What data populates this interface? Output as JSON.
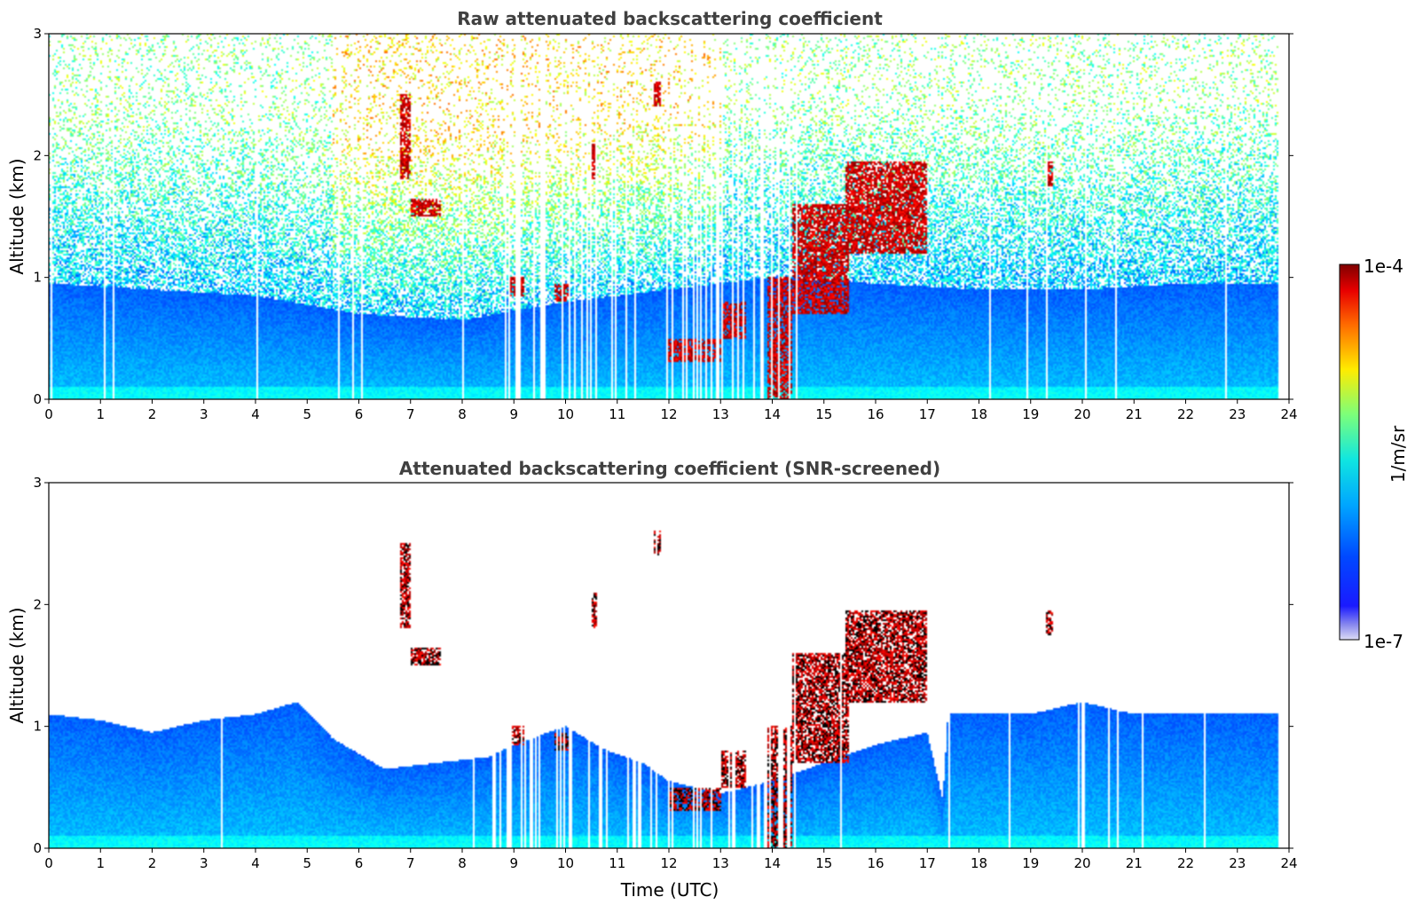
{
  "chart_data": [
    {
      "type": "heatmap",
      "title": "Raw attenuated backscattering coefficient",
      "xlabel": "",
      "ylabel": "Altitude (km)",
      "xlim": [
        0,
        24
      ],
      "ylim": [
        0,
        3
      ],
      "x_ticks": [
        "0",
        "1",
        "2",
        "3",
        "4",
        "5",
        "6",
        "7",
        "8",
        "9",
        "10",
        "11",
        "12",
        "13",
        "14",
        "15",
        "16",
        "17",
        "18",
        "19",
        "20",
        "21",
        "22",
        "23",
        "24"
      ],
      "y_ticks": [
        "0",
        "1",
        "2",
        "3"
      ],
      "x_tick_values": [
        0,
        1,
        2,
        3,
        4,
        5,
        6,
        7,
        8,
        9,
        10,
        11,
        12,
        13,
        14,
        15,
        16,
        17,
        18,
        19,
        20,
        21,
        22,
        23,
        24
      ],
      "y_tick_values": [
        0,
        1,
        2,
        3
      ],
      "data_end_time": 23.8,
      "noise_color": "#5ad4e8",
      "upper_noise_color": "#d9e85a",
      "boundary_layer_top": [
        [
          0,
          0.95
        ],
        [
          2,
          0.9
        ],
        [
          4,
          0.85
        ],
        [
          6,
          0.7
        ],
        [
          8,
          0.65
        ],
        [
          10,
          0.8
        ],
        [
          12,
          0.9
        ],
        [
          14,
          1.0
        ],
        [
          16,
          0.95
        ],
        [
          18,
          0.9
        ],
        [
          20,
          0.9
        ],
        [
          22,
          0.95
        ],
        [
          23.8,
          0.95
        ]
      ],
      "cloud_features": [
        {
          "x0": 6.8,
          "x1": 7.0,
          "y0": 1.8,
          "y1": 2.5
        },
        {
          "x0": 7.0,
          "x1": 7.6,
          "y0": 1.5,
          "y1": 1.65
        },
        {
          "x0": 8.9,
          "x1": 9.2,
          "y0": 0.85,
          "y1": 1.0
        },
        {
          "x0": 9.8,
          "x1": 10.1,
          "y0": 0.8,
          "y1": 0.95
        },
        {
          "x0": 10.5,
          "x1": 10.6,
          "y0": 1.8,
          "y1": 2.1
        },
        {
          "x0": 11.7,
          "x1": 11.85,
          "y0": 2.4,
          "y1": 2.6
        },
        {
          "x0": 12.0,
          "x1": 13.0,
          "y0": 0.3,
          "y1": 0.5
        },
        {
          "x0": 13.0,
          "x1": 13.5,
          "y0": 0.5,
          "y1": 0.8
        },
        {
          "x0": 13.9,
          "x1": 14.4,
          "y0": 0.0,
          "y1": 1.0
        },
        {
          "x0": 14.4,
          "x1": 15.5,
          "y0": 0.7,
          "y1": 1.6
        },
        {
          "x0": 15.4,
          "x1": 17.0,
          "y0": 1.2,
          "y1": 1.95
        },
        {
          "x0": 19.3,
          "x1": 19.45,
          "y0": 1.75,
          "y1": 1.95
        }
      ],
      "snr_screened": false
    },
    {
      "type": "heatmap",
      "title": "Attenuated backscattering coefficient (SNR-screened)",
      "xlabel": "Time (UTC)",
      "ylabel": "Altitude (km)",
      "xlim": [
        0,
        24
      ],
      "ylim": [
        0,
        3
      ],
      "x_ticks": [
        "0",
        "1",
        "2",
        "3",
        "4",
        "5",
        "6",
        "7",
        "8",
        "9",
        "10",
        "11",
        "12",
        "13",
        "14",
        "15",
        "16",
        "17",
        "18",
        "19",
        "20",
        "21",
        "22",
        "23",
        "24"
      ],
      "y_ticks": [
        "0",
        "1",
        "2",
        "3"
      ],
      "x_tick_values": [
        0,
        1,
        2,
        3,
        4,
        5,
        6,
        7,
        8,
        9,
        10,
        11,
        12,
        13,
        14,
        15,
        16,
        17,
        18,
        19,
        20,
        21,
        22,
        23,
        24
      ],
      "y_tick_values": [
        0,
        1,
        2,
        3
      ],
      "data_end_time": 23.8,
      "boundary_layer_top": [
        [
          0,
          1.1
        ],
        [
          1,
          1.05
        ],
        [
          2,
          0.95
        ],
        [
          3,
          1.05
        ],
        [
          4,
          1.1
        ],
        [
          4.8,
          1.2
        ],
        [
          5.5,
          0.9
        ],
        [
          6.5,
          0.65
        ],
        [
          7.5,
          0.7
        ],
        [
          8.5,
          0.75
        ],
        [
          9,
          0.85
        ],
        [
          10,
          1.0
        ],
        [
          10.8,
          0.8
        ],
        [
          11.5,
          0.7
        ],
        [
          12,
          0.55
        ],
        [
          13,
          0.45
        ],
        [
          14,
          0.55
        ],
        [
          15,
          0.7
        ],
        [
          16,
          0.85
        ],
        [
          17,
          0.95
        ],
        [
          17.3,
          0.4
        ],
        [
          17.4,
          1.1
        ],
        [
          18,
          1.1
        ],
        [
          19,
          1.1
        ],
        [
          20,
          1.2
        ],
        [
          21,
          1.1
        ],
        [
          22,
          1.1
        ],
        [
          23,
          1.1
        ],
        [
          23.8,
          1.1
        ]
      ],
      "cloud_features": [
        {
          "x0": 6.8,
          "x1": 7.0,
          "y0": 1.8,
          "y1": 2.5
        },
        {
          "x0": 7.0,
          "x1": 7.6,
          "y0": 1.5,
          "y1": 1.65
        },
        {
          "x0": 8.9,
          "x1": 9.2,
          "y0": 0.85,
          "y1": 1.0
        },
        {
          "x0": 9.8,
          "x1": 10.1,
          "y0": 0.8,
          "y1": 0.95
        },
        {
          "x0": 10.5,
          "x1": 10.6,
          "y0": 1.8,
          "y1": 2.1
        },
        {
          "x0": 11.7,
          "x1": 11.85,
          "y0": 2.4,
          "y1": 2.6
        },
        {
          "x0": 12.0,
          "x1": 13.0,
          "y0": 0.3,
          "y1": 0.5
        },
        {
          "x0": 13.0,
          "x1": 13.5,
          "y0": 0.5,
          "y1": 0.8
        },
        {
          "x0": 13.9,
          "x1": 14.4,
          "y0": 0.0,
          "y1": 1.0
        },
        {
          "x0": 14.4,
          "x1": 15.5,
          "y0": 0.7,
          "y1": 1.6
        },
        {
          "x0": 15.4,
          "x1": 17.0,
          "y0": 1.2,
          "y1": 1.95
        },
        {
          "x0": 19.3,
          "x1": 19.45,
          "y0": 1.75,
          "y1": 1.95
        }
      ],
      "snr_screened": true
    }
  ],
  "colorbar": {
    "label": "1/m/sr",
    "max_label": "1e-4",
    "min_label": "1e-7",
    "scale": "log",
    "colormap": "jet"
  }
}
